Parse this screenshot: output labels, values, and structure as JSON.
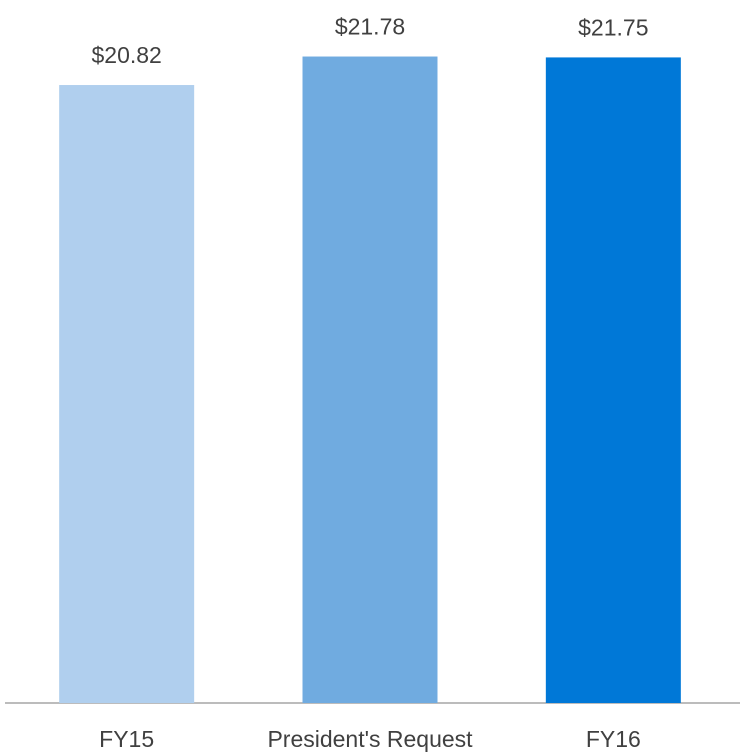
{
  "chart_data": {
    "type": "bar",
    "categories": [
      "FY15",
      "President's Request",
      "FY16"
    ],
    "values": [
      20.82,
      21.78,
      21.75
    ],
    "value_labels": [
      "$20.82",
      "$21.78",
      "$21.75"
    ],
    "colors": [
      "#b0cfee",
      "#70abe0",
      "#0078d7"
    ],
    "ylim": [
      0,
      22
    ]
  }
}
